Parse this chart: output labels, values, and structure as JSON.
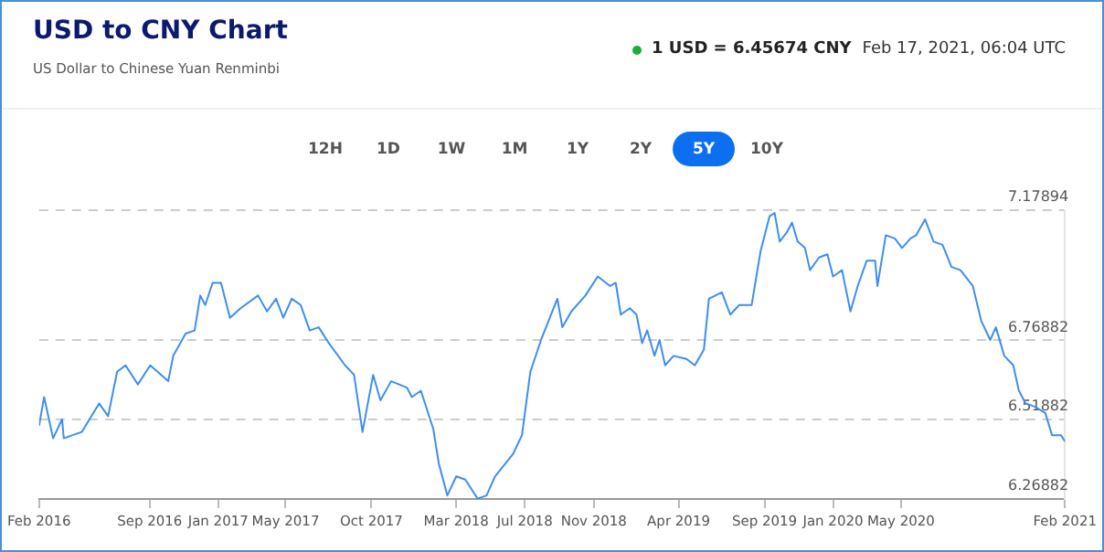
{
  "chart_data": {
    "type": "line",
    "title": "USD to CNY Chart",
    "subtitle": "US Dollar to Chinese Yuan Renminbi",
    "annotations": [
      "1 USD = 6.45674 CNY",
      "Feb 17, 2021, 06:04 UTC",
      "12H",
      "1D",
      "1W",
      "1M",
      "1Y",
      "2Y",
      "5Y",
      "10Y"
    ],
    "x": [
      "2016-02-17",
      "2016-02-26",
      "2016-03-13",
      "2016-03-29",
      "2016-04-01",
      "2016-05-03",
      "2016-06-03",
      "2016-06-19",
      "2016-07-05",
      "2016-07-20",
      "2016-08-11",
      "2016-09-02",
      "2016-10-04",
      "2016-10-13",
      "2016-11-04",
      "2016-11-20",
      "2016-11-30",
      "2016-12-09",
      "2016-12-22",
      "2017-01-06",
      "2017-01-22",
      "2017-02-10",
      "2017-03-13",
      "2017-03-29",
      "2017-04-14",
      "2017-04-27",
      "2017-05-12",
      "2017-05-28",
      "2017-06-13",
      "2017-06-29",
      "2017-07-17",
      "2017-08-15",
      "2017-08-31",
      "2017-09-15",
      "2017-10-04",
      "2017-10-17",
      "2017-11-05",
      "2017-12-03",
      "2017-12-12",
      "2017-12-28",
      "2018-01-19",
      "2018-01-29",
      "2018-02-13",
      "2018-03-01",
      "2018-03-17",
      "2018-04-08",
      "2018-04-24",
      "2018-05-09",
      "2018-06-10",
      "2018-06-26",
      "2018-07-11",
      "2018-07-30",
      "2018-08-28",
      "2018-09-06",
      "2018-09-22",
      "2018-10-17",
      "2018-11-08",
      "2018-11-30",
      "2018-12-10",
      "2018-12-19",
      "2019-01-04",
      "2019-01-16",
      "2019-01-26",
      "2019-02-04",
      "2019-02-17",
      "2019-02-26",
      "2019-03-08",
      "2019-03-23",
      "2019-04-15",
      "2019-04-30",
      "2019-05-16",
      "2019-05-25",
      "2019-06-17",
      "2019-07-02",
      "2019-07-18",
      "2019-08-09",
      "2019-08-25",
      "2019-09-10",
      "2019-09-19",
      "2019-09-28",
      "2019-10-11",
      "2019-10-20",
      "2019-10-30",
      "2019-11-12",
      "2019-11-21",
      "2019-12-07",
      "2019-12-22",
      "2020-01-01",
      "2020-01-17",
      "2020-02-01",
      "2020-02-14",
      "2020-03-01",
      "2020-03-16",
      "2020-03-20",
      "2020-04-04",
      "2020-04-20",
      "2020-05-03",
      "2020-05-18",
      "2020-05-28",
      "2020-06-13",
      "2020-06-28",
      "2020-07-14",
      "2020-07-30",
      "2020-08-15",
      "2020-09-06",
      "2020-09-21",
      "2020-10-07",
      "2020-10-17",
      "2020-11-01",
      "2020-11-17",
      "2020-11-27",
      "2020-12-09",
      "2020-12-25",
      "2021-01-13",
      "2021-01-25",
      "2021-02-10",
      "2021-02-17"
    ],
    "series": [
      {
        "color": "#3d8ef0",
        "values": [
          6.5,
          6.59,
          6.46,
          6.52,
          6.46,
          6.48,
          6.57,
          6.53,
          6.67,
          6.69,
          6.63,
          6.69,
          6.64,
          6.72,
          6.79,
          6.8,
          6.91,
          6.88,
          6.95,
          6.95,
          6.84,
          6.87,
          6.91,
          6.86,
          6.9,
          6.84,
          6.9,
          6.88,
          6.8,
          6.81,
          6.76,
          6.69,
          6.66,
          6.48,
          6.66,
          6.58,
          6.64,
          6.62,
          6.59,
          6.61,
          6.49,
          6.38,
          6.28,
          6.34,
          6.33,
          6.27,
          6.28,
          6.34,
          6.41,
          6.47,
          6.67,
          6.77,
          6.9,
          6.81,
          6.86,
          6.91,
          6.97,
          6.94,
          6.95,
          6.85,
          6.87,
          6.85,
          6.76,
          6.8,
          6.72,
          6.77,
          6.69,
          6.72,
          6.71,
          6.69,
          6.74,
          6.9,
          6.92,
          6.85,
          6.88,
          6.88,
          7.05,
          7.16,
          7.17,
          7.08,
          7.11,
          7.14,
          7.08,
          7.06,
          6.99,
          7.03,
          7.04,
          6.97,
          6.99,
          6.86,
          6.94,
          7.02,
          7.02,
          6.94,
          7.1,
          7.09,
          7.06,
          7.09,
          7.1,
          7.15,
          7.08,
          7.07,
          7.0,
          6.99,
          6.94,
          6.83,
          6.77,
          6.81,
          6.72,
          6.69,
          6.61,
          6.57,
          6.56,
          6.54,
          6.47,
          6.47,
          6.45
        ]
      }
    ],
    "xlim": [
      "2016-02-17",
      "2021-02-17"
    ],
    "xticks": [
      {
        "value": "2016-02-17",
        "label": "Feb 2016"
      },
      {
        "value": "2016-09-01",
        "label": "Sep 2016"
      },
      {
        "value": "2017-01-01",
        "label": "Jan 2017"
      },
      {
        "value": "2017-05-01",
        "label": "May 2017"
      },
      {
        "value": "2017-10-01",
        "label": "Oct 2017"
      },
      {
        "value": "2018-03-01",
        "label": "Mar 2018"
      },
      {
        "value": "2018-07-01",
        "label": "Jul 2018"
      },
      {
        "value": "2018-11-01",
        "label": "Nov 2018"
      },
      {
        "value": "2019-04-01",
        "label": "Apr 2019"
      },
      {
        "value": "2019-09-01",
        "label": "Sep 2019"
      },
      {
        "value": "2020-01-01",
        "label": "Jan 2020"
      },
      {
        "value": "2020-05-01",
        "label": "May 2020"
      },
      {
        "value": "2021-02-17",
        "label": "Feb 2021"
      }
    ],
    "ylim": [
      6.26882,
      7.17894
    ],
    "yticks": [
      6.26882,
      6.51882,
      6.76882,
      7.17894
    ],
    "grid": "y",
    "legend": false,
    "marker": "none",
    "line_style": "solid"
  }
}
